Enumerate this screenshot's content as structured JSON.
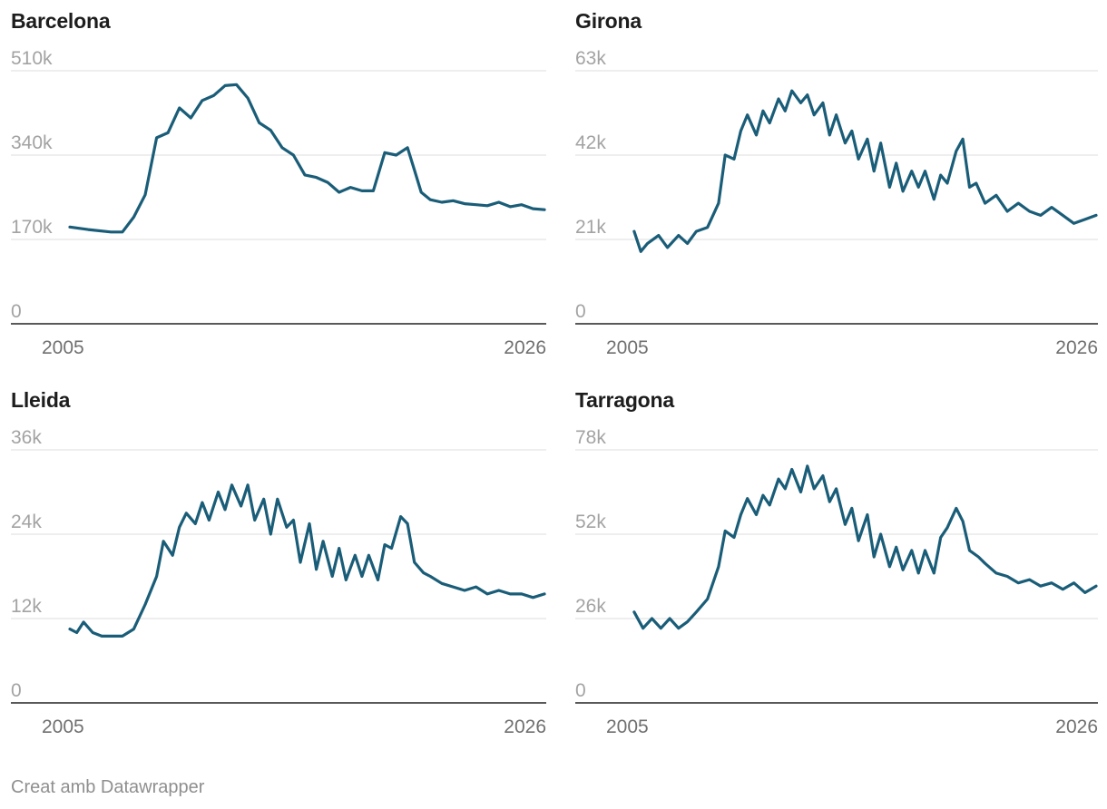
{
  "footer": {
    "credit": "Creat amb Datawrapper"
  },
  "colors": {
    "line": "#1a5d78",
    "grid": "#e3e3e3",
    "baseline": "#222222",
    "ytick": "#a3a3a3",
    "xtick": "#707070"
  },
  "chart_data": [
    {
      "type": "line",
      "title": "Barcelona",
      "x": [
        2005.2,
        2006,
        2007,
        2007.5,
        2008,
        2008.5,
        2009,
        2009.5,
        2010,
        2010.5,
        2011,
        2011.5,
        2012,
        2012.5,
        2013,
        2013.5,
        2014,
        2014.5,
        2015,
        2015.5,
        2016,
        2016.5,
        2017,
        2017.5,
        2018,
        2018.5,
        2019,
        2019.5,
        2020,
        2020.3,
        2020.6,
        2021,
        2021.5,
        2022,
        2022.5,
        2023,
        2023.5,
        2024,
        2024.5,
        2025,
        2025.5,
        2026
      ],
      "values": [
        195,
        190,
        185,
        185,
        215,
        260,
        375,
        385,
        435,
        415,
        450,
        460,
        480,
        482,
        455,
        405,
        390,
        355,
        340,
        300,
        295,
        285,
        265,
        275,
        268,
        268,
        345,
        340,
        355,
        310,
        265,
        250,
        245,
        248,
        242,
        240,
        238,
        245,
        236,
        240,
        232,
        230
      ],
      "ylim": [
        0,
        510
      ],
      "yticks": [
        "510k",
        "340k",
        "170k",
        "0"
      ],
      "xticks": [
        "2005",
        "2026"
      ]
    },
    {
      "type": "line",
      "title": "Girona",
      "x": [
        2005.2,
        2005.5,
        2005.8,
        2006.3,
        2006.7,
        2007.2,
        2007.6,
        2008,
        2008.5,
        2009,
        2009.3,
        2009.7,
        2010,
        2010.3,
        2010.7,
        2011,
        2011.3,
        2011.7,
        2012,
        2012.3,
        2012.7,
        2013,
        2013.3,
        2013.7,
        2014,
        2014.3,
        2014.7,
        2015,
        2015.3,
        2015.7,
        2016,
        2016.3,
        2016.7,
        2017,
        2017.3,
        2017.7,
        2018,
        2018.3,
        2018.7,
        2019,
        2019.3,
        2019.7,
        2020,
        2020.3,
        2020.6,
        2021,
        2021.5,
        2022,
        2022.5,
        2023,
        2023.5,
        2024,
        2024.5,
        2025,
        2025.5,
        2026
      ],
      "values": [
        23,
        18,
        20,
        22,
        19,
        22,
        20,
        23,
        24,
        30,
        42,
        41,
        48,
        52,
        47,
        53,
        50,
        56,
        53,
        58,
        55,
        57,
        52,
        55,
        47,
        52,
        45,
        48,
        41,
        46,
        38,
        45,
        34,
        40,
        33,
        38,
        34,
        38,
        31,
        37,
        35,
        43,
        46,
        34,
        35,
        30,
        32,
        28,
        30,
        28,
        27,
        29,
        27,
        25,
        26,
        27
      ],
      "ylim": [
        0,
        63
      ],
      "yticks": [
        "63k",
        "42k",
        "21k",
        "0"
      ],
      "xticks": [
        "2005",
        "2026"
      ]
    },
    {
      "type": "line",
      "title": "Lleida",
      "x": [
        2005.2,
        2005.5,
        2005.8,
        2006.2,
        2006.6,
        2007,
        2007.5,
        2008,
        2008.5,
        2009,
        2009.3,
        2009.7,
        2010,
        2010.3,
        2010.7,
        2011,
        2011.3,
        2011.7,
        2012,
        2012.3,
        2012.7,
        2013,
        2013.3,
        2013.7,
        2014,
        2014.3,
        2014.7,
        2015,
        2015.3,
        2015.7,
        2016,
        2016.3,
        2016.7,
        2017,
        2017.3,
        2017.7,
        2018,
        2018.3,
        2018.7,
        2019,
        2019.3,
        2019.7,
        2020,
        2020.3,
        2020.7,
        2021,
        2021.5,
        2022,
        2022.5,
        2023,
        2023.5,
        2024,
        2024.5,
        2025,
        2025.5,
        2026
      ],
      "values": [
        10.5,
        10.0,
        11.5,
        10.0,
        9.5,
        9.5,
        9.5,
        10.5,
        14.0,
        18.0,
        23.0,
        21.0,
        25.0,
        27.0,
        25.5,
        28.5,
        26.0,
        30.0,
        27.5,
        31.0,
        28.0,
        31.0,
        26.0,
        29.0,
        24.0,
        29.0,
        25.0,
        26.0,
        20.0,
        25.5,
        19.0,
        23.0,
        18.0,
        22.0,
        17.5,
        21.0,
        18.0,
        21.0,
        17.5,
        22.5,
        22.0,
        26.5,
        25.5,
        20.0,
        18.5,
        18.0,
        17.0,
        16.5,
        16.0,
        16.5,
        15.5,
        16.0,
        15.5,
        15.5,
        15.0,
        15.5
      ],
      "ylim": [
        0,
        36
      ],
      "yticks": [
        "36k",
        "24k",
        "12k",
        "0"
      ],
      "xticks": [
        "2005",
        "2026"
      ]
    },
    {
      "type": "line",
      "title": "Tarragona",
      "x": [
        2005.2,
        2005.6,
        2006,
        2006.4,
        2006.8,
        2007.2,
        2007.6,
        2008,
        2008.5,
        2009,
        2009.3,
        2009.7,
        2010,
        2010.3,
        2010.7,
        2011,
        2011.3,
        2011.7,
        2012,
        2012.3,
        2012.7,
        2013,
        2013.3,
        2013.7,
        2014,
        2014.3,
        2014.7,
        2015,
        2015.3,
        2015.7,
        2016,
        2016.3,
        2016.7,
        2017,
        2017.3,
        2017.7,
        2018,
        2018.3,
        2018.7,
        2019,
        2019.3,
        2019.7,
        2020,
        2020.3,
        2020.7,
        2021,
        2021.5,
        2022,
        2022.5,
        2023,
        2023.5,
        2024,
        2024.5,
        2025,
        2025.5,
        2026
      ],
      "values": [
        28,
        23,
        26,
        23,
        26,
        23,
        25,
        28,
        32,
        42,
        53,
        51,
        58,
        63,
        58,
        64,
        61,
        69,
        66,
        72,
        65,
        73,
        66,
        70,
        62,
        66,
        55,
        60,
        50,
        58,
        45,
        52,
        42,
        48,
        41,
        47,
        40,
        47,
        40,
        51,
        54,
        60,
        56,
        47,
        45,
        43,
        40,
        39,
        37,
        38,
        36,
        37,
        35,
        37,
        34,
        36
      ],
      "ylim": [
        0,
        78
      ],
      "yticks": [
        "78k",
        "52k",
        "26k",
        "0"
      ],
      "xticks": [
        "2005",
        "2026"
      ]
    }
  ]
}
